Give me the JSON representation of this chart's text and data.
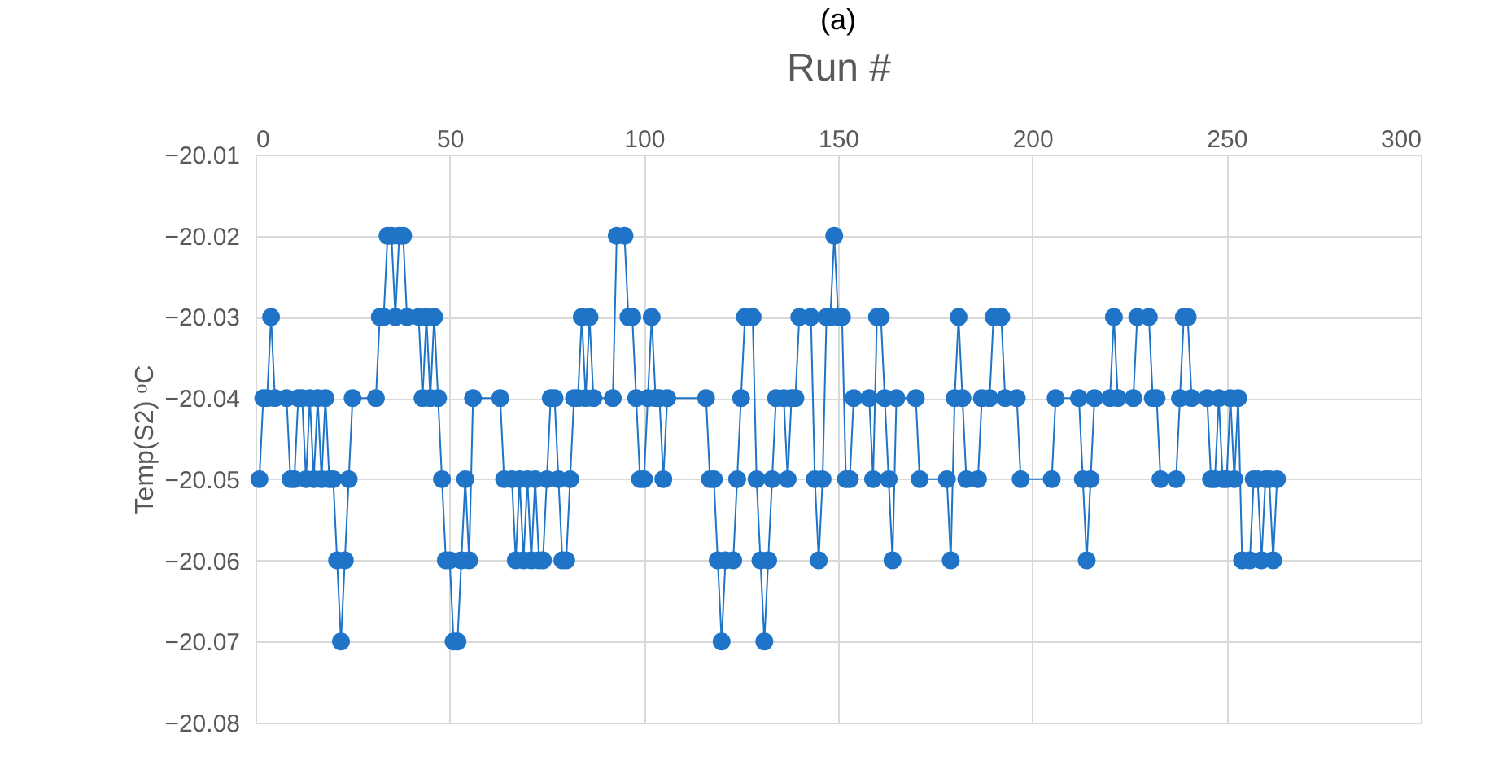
{
  "chart_data": {
    "type": "line",
    "title": "(a)",
    "xlabel": "Run #",
    "ylabel": "Temp(S2) ᵒC",
    "x": [
      1,
      2,
      3,
      4,
      5,
      8,
      9,
      10,
      11,
      12,
      13,
      14,
      15,
      16,
      17,
      18,
      19,
      20,
      21,
      22,
      23,
      24,
      25,
      31,
      32,
      33,
      34,
      35,
      36,
      37,
      38,
      39,
      42,
      43,
      44,
      45,
      46,
      47,
      48,
      49,
      50,
      51,
      52,
      53,
      54,
      55,
      56,
      63,
      64,
      66,
      67,
      68,
      69,
      70,
      71,
      72,
      73,
      74,
      75,
      76,
      77,
      78,
      79,
      80,
      81,
      82,
      83,
      84,
      85,
      86,
      87,
      92,
      93,
      95,
      96,
      97,
      98,
      99,
      100,
      101,
      102,
      103,
      104,
      105,
      106,
      116,
      117,
      118,
      119,
      120,
      121,
      123,
      124,
      125,
      126,
      128,
      129,
      130,
      131,
      132,
      133,
      134,
      136,
      137,
      138,
      139,
      140,
      143,
      144,
      145,
      146,
      147,
      148,
      149,
      150,
      151,
      152,
      153,
      154,
      158,
      159,
      160,
      161,
      162,
      163,
      164,
      165,
      170,
      171,
      178,
      179,
      180,
      181,
      182,
      183,
      186,
      187,
      189,
      190,
      192,
      193,
      196,
      197,
      205,
      206,
      212,
      213,
      214,
      215,
      216,
      220,
      221,
      222,
      226,
      227,
      230,
      231,
      232,
      233,
      237,
      238,
      239,
      240,
      241,
      245,
      246,
      247,
      248,
      249,
      250,
      251,
      252,
      253,
      254,
      256,
      257,
      258,
      259,
      260,
      261,
      262,
      263
    ],
    "series": [
      {
        "color": "#1f74c8",
        "values": [
          -20.05,
          -20.04,
          -20.04,
          -20.03,
          -20.04,
          -20.04,
          -20.05,
          -20.05,
          -20.04,
          -20.04,
          -20.05,
          -20.04,
          -20.05,
          -20.04,
          -20.05,
          -20.04,
          -20.05,
          -20.05,
          -20.06,
          -20.07,
          -20.06,
          -20.05,
          -20.04,
          -20.04,
          -20.03,
          -20.03,
          -20.02,
          -20.02,
          -20.03,
          -20.02,
          -20.02,
          -20.03,
          -20.03,
          -20.04,
          -20.03,
          -20.04,
          -20.03,
          -20.04,
          -20.05,
          -20.06,
          -20.06,
          -20.07,
          -20.07,
          -20.06,
          -20.05,
          -20.06,
          -20.04,
          -20.04,
          -20.05,
          -20.05,
          -20.06,
          -20.05,
          -20.06,
          -20.05,
          -20.06,
          -20.05,
          -20.06,
          -20.06,
          -20.05,
          -20.04,
          -20.04,
          -20.05,
          -20.06,
          -20.06,
          -20.05,
          -20.04,
          -20.04,
          -20.03,
          -20.04,
          -20.03,
          -20.04,
          -20.04,
          -20.02,
          -20.02,
          -20.03,
          -20.03,
          -20.04,
          -20.05,
          -20.05,
          -20.04,
          -20.03,
          -20.04,
          -20.04,
          -20.05,
          -20.04,
          -20.04,
          -20.05,
          -20.05,
          -20.06,
          -20.07,
          -20.06,
          -20.06,
          -20.05,
          -20.04,
          -20.03,
          -20.03,
          -20.05,
          -20.06,
          -20.07,
          -20.06,
          -20.05,
          -20.04,
          -20.04,
          -20.05,
          -20.04,
          -20.04,
          -20.03,
          -20.03,
          -20.05,
          -20.06,
          -20.05,
          -20.03,
          -20.03,
          -20.02,
          -20.03,
          -20.03,
          -20.05,
          -20.05,
          -20.04,
          -20.04,
          -20.05,
          -20.03,
          -20.03,
          -20.04,
          -20.05,
          -20.06,
          -20.04,
          -20.04,
          -20.05,
          -20.05,
          -20.06,
          -20.04,
          -20.03,
          -20.04,
          -20.05,
          -20.05,
          -20.04,
          -20.04,
          -20.03,
          -20.03,
          -20.04,
          -20.04,
          -20.05,
          -20.05,
          -20.04,
          -20.04,
          -20.05,
          -20.06,
          -20.05,
          -20.04,
          -20.04,
          -20.03,
          -20.04,
          -20.04,
          -20.03,
          -20.03,
          -20.04,
          -20.04,
          -20.05,
          -20.05,
          -20.04,
          -20.03,
          -20.03,
          -20.04,
          -20.04,
          -20.05,
          -20.05,
          -20.04,
          -20.05,
          -20.05,
          -20.04,
          -20.05,
          -20.04,
          -20.06,
          -20.06,
          -20.05,
          -20.05,
          -20.06,
          -20.05,
          -20.05,
          -20.06,
          -20.05
        ]
      }
    ],
    "xlim": [
      0,
      300
    ],
    "xticks": [
      0,
      50,
      100,
      150,
      200,
      250,
      300
    ],
    "ylim": [
      -20.08,
      -20.01
    ],
    "yticks": [
      -20.08,
      -20.07,
      -20.06,
      -20.05,
      -20.04,
      -20.03,
      -20.02,
      -20.01
    ],
    "grid": true,
    "marker": "circle",
    "line_style": "solid",
    "legend": false
  }
}
